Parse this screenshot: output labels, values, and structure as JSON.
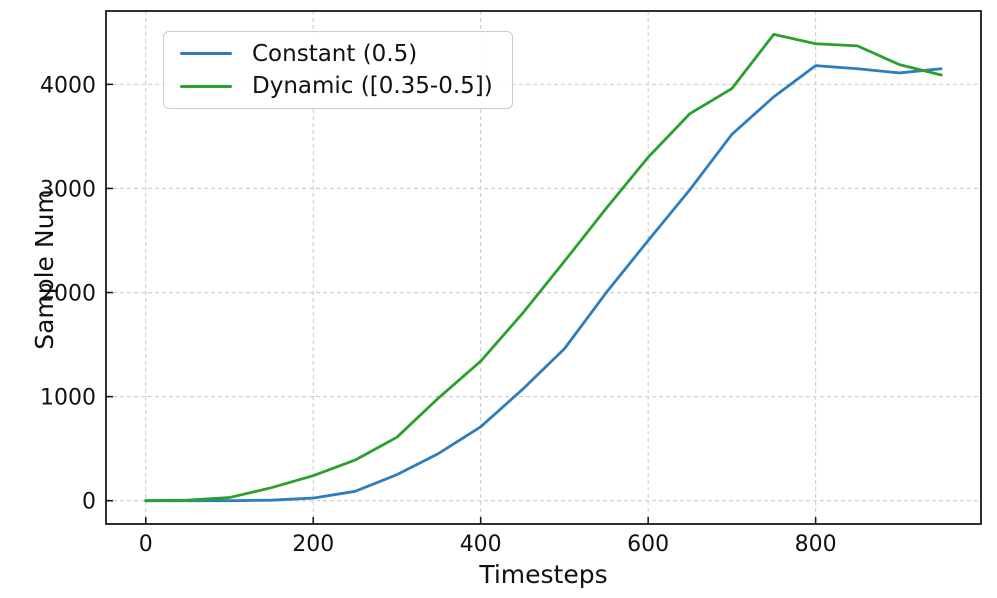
{
  "chart_data": {
    "type": "line",
    "title": "",
    "xlabel": "Timesteps",
    "ylabel": "Sample Num",
    "x": [
      0,
      50,
      100,
      150,
      200,
      250,
      300,
      350,
      400,
      450,
      500,
      550,
      600,
      650,
      700,
      750,
      800,
      850,
      900,
      950
    ],
    "series": [
      {
        "name": "Constant (0.5)",
        "color": "#2e7ebf",
        "values": [
          0,
          0,
          0,
          5,
          25,
          90,
          250,
          455,
          710,
          1070,
          1460,
          2000,
          2500,
          2990,
          3520,
          3880,
          4180,
          4150,
          4110,
          4150
        ]
      },
      {
        "name": "Dynamic ([0.35-0.5])",
        "color": "#2ca02c",
        "values": [
          0,
          5,
          30,
          125,
          240,
          390,
          610,
          990,
          1340,
          1800,
          2300,
          2810,
          3300,
          3720,
          3960,
          4480,
          4390,
          4370,
          4190,
          4090
        ]
      }
    ],
    "xticks": [
      0,
      200,
      400,
      600,
      800
    ],
    "yticks": [
      0,
      1000,
      2000,
      3000,
      4000
    ],
    "xtick_labels": [
      "0",
      "200",
      "400",
      "600",
      "800"
    ],
    "ytick_labels": [
      "0",
      "1000",
      "2000",
      "3000",
      "4000"
    ],
    "xlim": [
      -47.5,
      997.5
    ],
    "ylim": [
      -224,
      4705
    ],
    "grid": {
      "on": true,
      "linestyle": "dashed",
      "color": "#cdcdcd"
    },
    "legend_position": "upper-left",
    "spine_color": "#1a1a1a",
    "text_color": "#111111",
    "line_width": 2.8
  }
}
